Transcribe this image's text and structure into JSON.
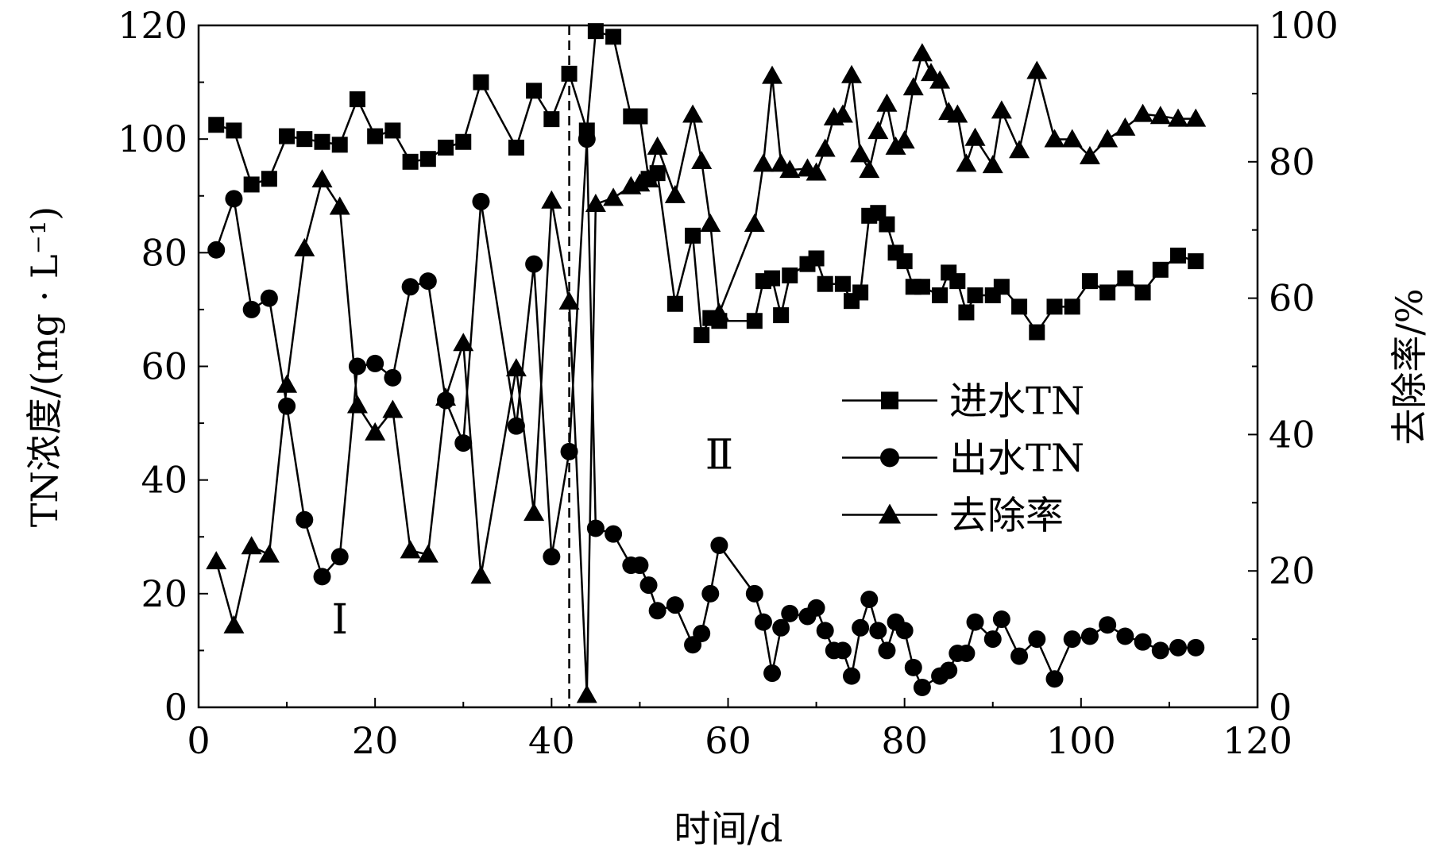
{
  "chart_data": {
    "type": "line",
    "xlabel": "时间/d",
    "ylabel": "TN浓度/(mg · L⁻¹)",
    "y2label": "去除率/%",
    "xlim": [
      0,
      120
    ],
    "ylim": [
      0,
      120
    ],
    "y2lim": [
      0,
      100
    ],
    "xticks": [
      0,
      20,
      40,
      60,
      80,
      100,
      120
    ],
    "yticks": [
      0,
      20,
      40,
      60,
      80,
      100,
      120
    ],
    "y2ticks": [
      0,
      20,
      40,
      60,
      80,
      100
    ],
    "grid": false,
    "legend_position": "center-right",
    "phase_divider_x": 42,
    "phase_labels": [
      {
        "text": "Ⅰ",
        "x": 16,
        "y": 13
      },
      {
        "text": "Ⅱ",
        "x": 59,
        "y": 42
      }
    ],
    "series": [
      {
        "name": "进水TN",
        "marker": "square",
        "axis": "left",
        "x": [
          2,
          4,
          6,
          8,
          10,
          12,
          14,
          16,
          18,
          20,
          22,
          24,
          26,
          28,
          30,
          32,
          36,
          38,
          40,
          42,
          44,
          45,
          47,
          49,
          50,
          51,
          52,
          54,
          56,
          57,
          58,
          59,
          63,
          64,
          65,
          66,
          67,
          69,
          70,
          71,
          73,
          74,
          75,
          76,
          77,
          78,
          79,
          80,
          81,
          82,
          84,
          85,
          86,
          87,
          88,
          90,
          91,
          93,
          95,
          97,
          99,
          101,
          103,
          105,
          107,
          109,
          111,
          113
        ],
        "y": [
          102.5,
          101.5,
          92,
          93,
          100.5,
          100,
          99.5,
          99,
          107,
          100.5,
          101.5,
          96,
          96.5,
          98.5,
          99.5,
          110,
          98.5,
          108.5,
          103.5,
          111.5,
          101.5,
          119,
          118,
          104,
          104,
          93,
          94,
          71,
          83,
          65.5,
          68.5,
          68,
          68,
          75,
          75.5,
          69,
          76,
          78,
          79,
          74.5,
          74.5,
          71.5,
          73,
          86.5,
          87,
          85,
          80,
          78.5,
          74,
          74,
          72.5,
          76.5,
          75,
          69.5,
          72.5,
          72.5,
          74,
          70.5,
          66,
          70.5,
          70.5,
          75,
          73,
          75.5,
          73,
          77,
          79.5,
          78.5
        ]
      },
      {
        "name": "出水TN",
        "marker": "circle",
        "axis": "left",
        "x": [
          2,
          4,
          6,
          8,
          10,
          12,
          14,
          16,
          18,
          20,
          22,
          24,
          26,
          28,
          30,
          32,
          36,
          38,
          40,
          42,
          44,
          45,
          47,
          49,
          50,
          51,
          52,
          54,
          56,
          57,
          58,
          59,
          63,
          64,
          65,
          66,
          67,
          69,
          70,
          71,
          72,
          73,
          74,
          75,
          76,
          77,
          78,
          79,
          80,
          81,
          82,
          84,
          85,
          86,
          87,
          88,
          90,
          91,
          93,
          95,
          97,
          99,
          101,
          103,
          105,
          107,
          109,
          111,
          113
        ],
        "y": [
          80.5,
          89.5,
          70,
          72,
          53,
          33,
          23,
          26.5,
          60,
          60.5,
          58,
          74,
          75,
          54,
          46.5,
          89,
          49.5,
          78,
          26.5,
          45,
          100,
          31.5,
          30.5,
          25,
          25,
          21.5,
          17,
          18,
          11,
          13,
          20,
          28.5,
          20,
          15,
          6,
          14,
          16.5,
          16,
          17.5,
          13.5,
          10,
          10,
          5.5,
          14,
          19,
          13.5,
          10,
          15,
          13.5,
          7,
          3.5,
          5.5,
          6.5,
          9.5,
          9.5,
          15,
          12,
          15.5,
          9,
          12,
          5,
          12,
          12.5,
          14.5,
          12.5,
          11.5,
          10,
          10.5,
          10.5
        ]
      },
      {
        "name": "去除率",
        "marker": "triangle",
        "axis": "right",
        "x": [
          2,
          4,
          6,
          8,
          10,
          12,
          14,
          16,
          18,
          20,
          22,
          24,
          26,
          28,
          30,
          32,
          36,
          38,
          40,
          42,
          44,
          45,
          47,
          49,
          50,
          51,
          52,
          54,
          56,
          57,
          58,
          59,
          63,
          64,
          65,
          66,
          67,
          69,
          70,
          71,
          72,
          73,
          74,
          75,
          76,
          77,
          78,
          79,
          80,
          81,
          82,
          83,
          84,
          85,
          86,
          87,
          88,
          90,
          91,
          93,
          95,
          97,
          99,
          101,
          103,
          105,
          107,
          109,
          111,
          113
        ],
        "y": [
          21.4,
          12,
          23.6,
          22.4,
          47.3,
          67.3,
          77.4,
          73.4,
          44.3,
          40.3,
          43.6,
          23,
          22.4,
          45.4,
          53.4,
          19.3,
          49.7,
          28.5,
          74.3,
          59.5,
          1.8,
          73.8,
          74.7,
          76.4,
          76.8,
          77.4,
          82.2,
          75.1,
          86.9,
          80.1,
          70.9,
          57.8,
          70.9,
          79.7,
          92.6,
          79.7,
          78.8,
          79,
          78.4,
          81.9,
          86.5,
          86.9,
          92.7,
          81.1,
          78.8,
          84.5,
          88.5,
          82.2,
          83.1,
          90.9,
          95.9,
          93,
          91.9,
          87.3,
          86.9,
          79.7,
          83.5,
          79.5,
          87.5,
          81.7,
          93.3,
          83.3,
          83.3,
          80.8,
          83.3,
          85,
          87,
          86.7,
          86.3,
          86.3
        ]
      }
    ]
  }
}
